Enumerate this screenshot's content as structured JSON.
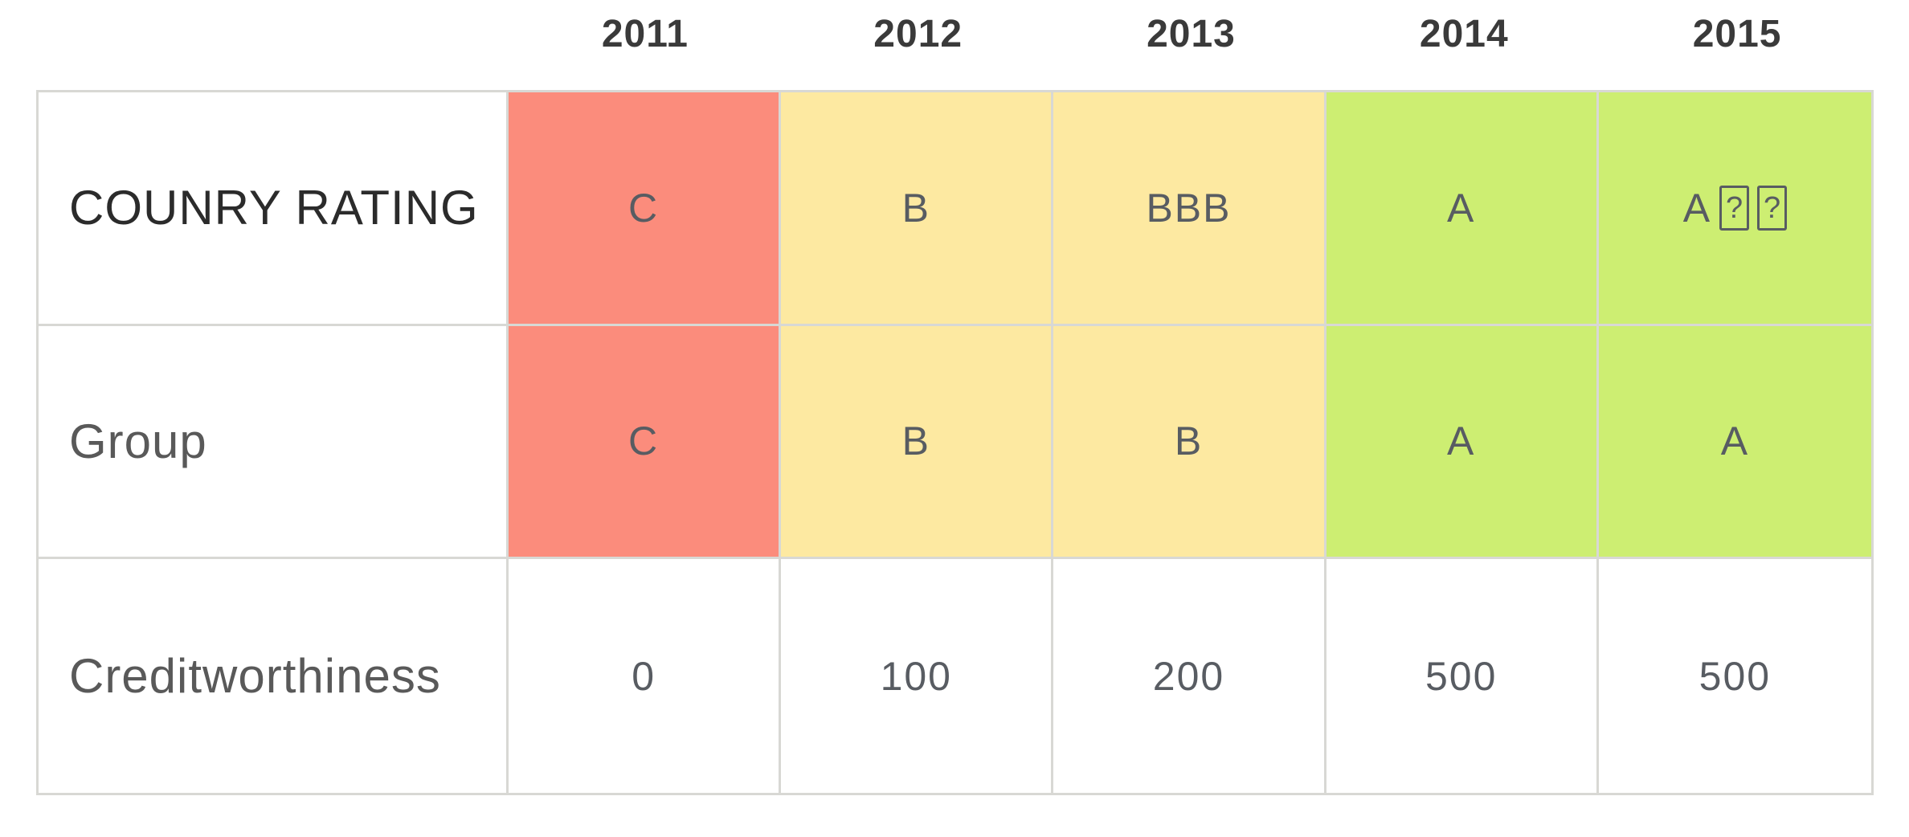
{
  "colors": {
    "red": "#fb8c7c",
    "yellow": "#fde9a1",
    "green": "#cdee72",
    "white": "#ffffff",
    "border": "#d8d8d4",
    "header_text": "#3a3a3a",
    "label_dark": "#2b2b2b",
    "label_gray": "#595959",
    "cell_text": "#585c62"
  },
  "header": {
    "years": [
      "2011",
      "2012",
      "2013",
      "2014",
      "2015"
    ]
  },
  "table": {
    "missing_glyph_char": "?",
    "rows": [
      {
        "label": "COUNRY RATING",
        "cells": [
          {
            "text": "C",
            "color": "red"
          },
          {
            "text": "B",
            "color": "yellow"
          },
          {
            "text": "BBB",
            "color": "yellow"
          },
          {
            "text": "A",
            "color": "green"
          },
          {
            "text": "A",
            "color": "green",
            "missing_glyphs": 2
          }
        ]
      },
      {
        "label": "Group",
        "cells": [
          {
            "text": "C",
            "color": "red"
          },
          {
            "text": "B",
            "color": "yellow"
          },
          {
            "text": "B",
            "color": "yellow"
          },
          {
            "text": "A",
            "color": "green"
          },
          {
            "text": "A",
            "color": "green"
          }
        ]
      },
      {
        "label": "Creditworthiness",
        "cells": [
          {
            "text": "0",
            "color": "white"
          },
          {
            "text": "100",
            "color": "white"
          },
          {
            "text": "200",
            "color": "white"
          },
          {
            "text": "500",
            "color": "white"
          },
          {
            "text": "500",
            "color": "white"
          }
        ]
      }
    ]
  },
  "chart_data": {
    "type": "table",
    "columns": [
      "2011",
      "2012",
      "2013",
      "2014",
      "2015"
    ],
    "rows": [
      {
        "label": "COUNRY RATING",
        "values": [
          "C",
          "B",
          "BBB",
          "A",
          "A⍰⍰"
        ],
        "cell_colors": [
          "red",
          "yellow",
          "yellow",
          "green",
          "green"
        ]
      },
      {
        "label": "Group",
        "values": [
          "C",
          "B",
          "B",
          "A",
          "A"
        ],
        "cell_colors": [
          "red",
          "yellow",
          "yellow",
          "green",
          "green"
        ]
      },
      {
        "label": "Creditworthiness",
        "values": [
          0,
          100,
          200,
          500,
          500
        ],
        "cell_colors": [
          "white",
          "white",
          "white",
          "white",
          "white"
        ]
      }
    ],
    "legend_position": "none",
    "grid": true
  }
}
